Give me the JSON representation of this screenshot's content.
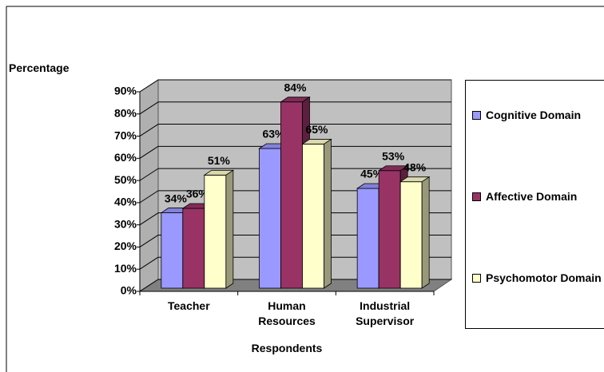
{
  "chart_data": {
    "type": "bar3d",
    "ylabel": "Percentage",
    "xlabel": "Respondents",
    "categories": [
      "Teacher",
      "Human Resources",
      "Industrial Supervisor"
    ],
    "series": [
      {
        "name": "Cognitive Domain",
        "color": "#9999ff",
        "values": [
          34,
          63,
          45
        ],
        "value_labels": [
          "34%",
          "63%",
          "45%"
        ]
      },
      {
        "name": "Affective Domain",
        "color": "#993366",
        "values": [
          36,
          84,
          53
        ],
        "value_labels": [
          "36%",
          "84%",
          "53%"
        ]
      },
      {
        "name": "Psychomotor Domain",
        "color": "#ffffcc",
        "values": [
          51,
          65,
          48
        ],
        "value_labels": [
          "51%",
          "65%",
          "48%"
        ]
      }
    ],
    "ylim": [
      0,
      90
    ],
    "yticks": [
      {
        "value": 0,
        "label": "0%"
      },
      {
        "value": 10,
        "label": "10%"
      },
      {
        "value": 20,
        "label": "20%"
      },
      {
        "value": 30,
        "label": "30%"
      },
      {
        "value": 40,
        "label": "40%"
      },
      {
        "value": 50,
        "label": "50%"
      },
      {
        "value": 60,
        "label": "60%"
      },
      {
        "value": 70,
        "label": "70%"
      },
      {
        "value": 80,
        "label": "80%"
      },
      {
        "value": 90,
        "label": "90%"
      }
    ],
    "grid": true,
    "legend": "right"
  }
}
